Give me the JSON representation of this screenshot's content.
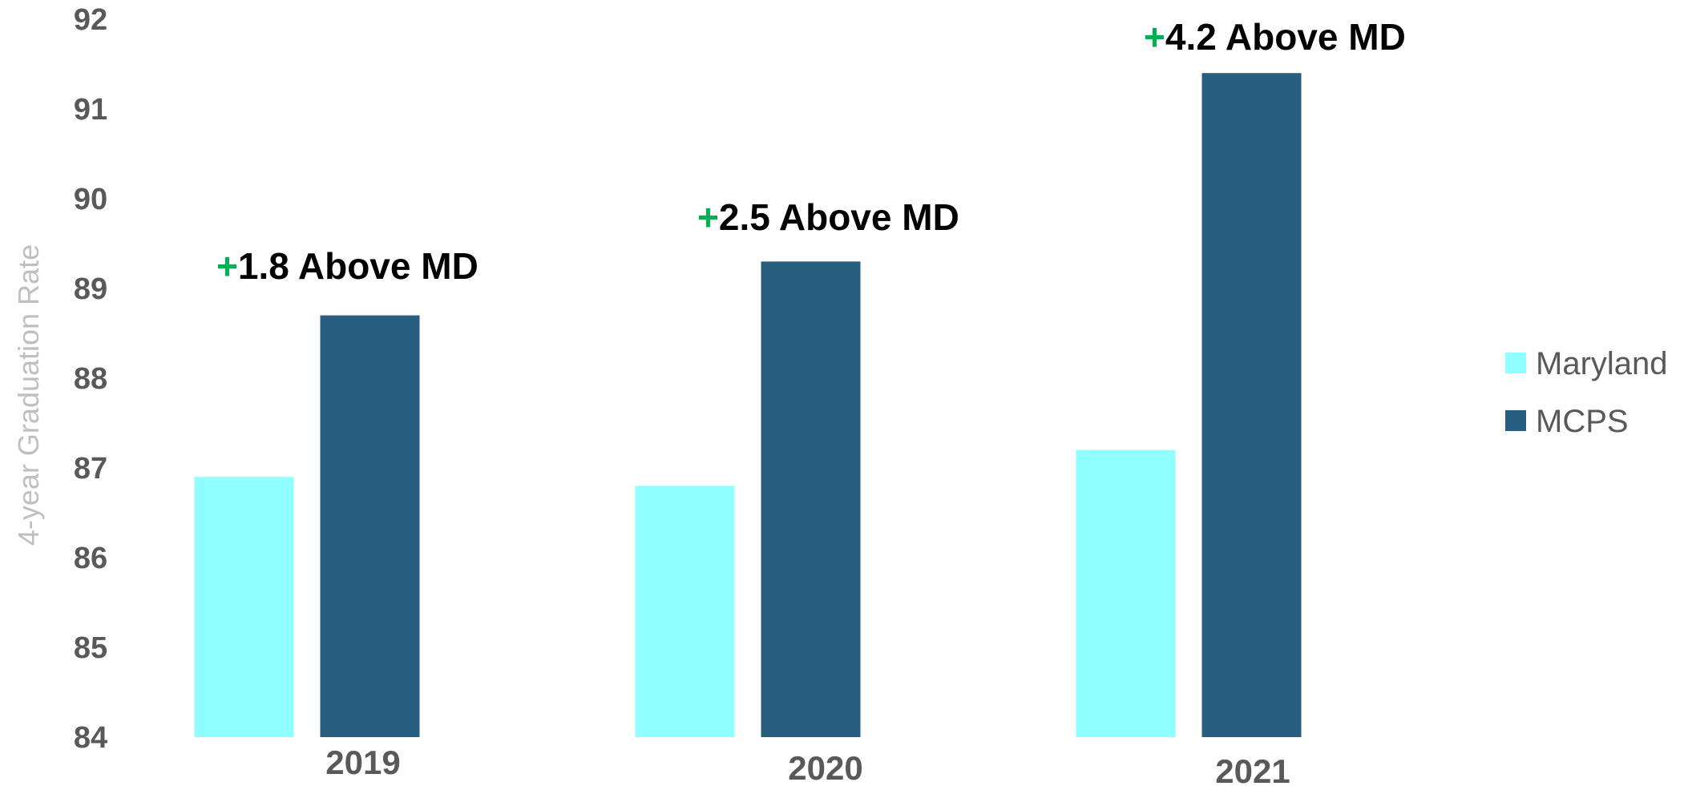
{
  "chart_data": {
    "type": "bar",
    "ylabel": "4-year Graduation Rate",
    "ylim": [
      84,
      92
    ],
    "yticks": [
      "84",
      "85",
      "86",
      "87",
      "88",
      "89",
      "90",
      "91",
      "92"
    ],
    "categories": [
      "2019",
      "2020",
      "2021"
    ],
    "series": [
      {
        "name": "Maryland",
        "values": [
          86.9,
          86.8,
          87.2
        ],
        "color": "#8fffff"
      },
      {
        "name": "MCPS",
        "values": [
          88.7,
          89.3,
          91.4
        ],
        "color": "#285f80"
      }
    ],
    "annotations": [
      {
        "sign": "+",
        "text": "1.8 Above MD"
      },
      {
        "sign": "+",
        "text": "2.5 Above MD"
      },
      {
        "sign": "+",
        "text": "4.2 Above MD"
      }
    ],
    "annotation_sign_color": "#00b050",
    "legend_position": "right",
    "grid": false
  }
}
